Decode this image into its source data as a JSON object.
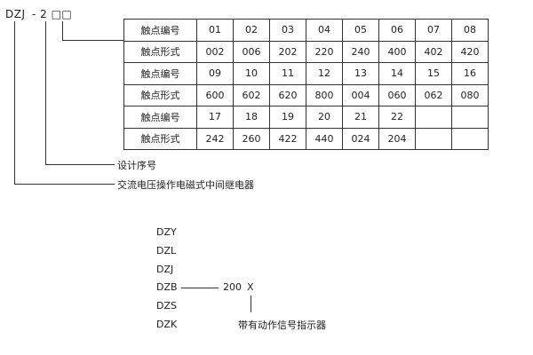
{
  "model": {
    "prefix": "DZJ",
    "suffix": "- 2 □□"
  },
  "table": {
    "rows": [
      {
        "label": "触点编号",
        "cells": [
          "01",
          "02",
          "03",
          "04",
          "05",
          "06",
          "07",
          "08"
        ]
      },
      {
        "label": "触点形式",
        "cells": [
          "002",
          "006",
          "202",
          "220",
          "240",
          "400",
          "402",
          "420"
        ]
      },
      {
        "label": "触点编号",
        "cells": [
          "09",
          "10",
          "11",
          "12",
          "13",
          "14",
          "15",
          "16"
        ]
      },
      {
        "label": "触点形式",
        "cells": [
          "600",
          "602",
          "620",
          "800",
          "004",
          "060",
          "062",
          "080"
        ]
      },
      {
        "label": "触点编号",
        "cells": [
          "17",
          "18",
          "19",
          "20",
          "21",
          "22",
          "",
          ""
        ]
      },
      {
        "label": "触点形式",
        "cells": [
          "242",
          "260",
          "422",
          "440",
          "024",
          "204",
          "",
          ""
        ]
      }
    ]
  },
  "annotations": {
    "design_no": "设计序号",
    "relay_type": "交流电压操作电磁式中间继电器"
  },
  "series": {
    "items": [
      "DZY",
      "DZL",
      "DZJ",
      "DZB",
      "DZS",
      "DZK"
    ],
    "code": "200",
    "code_suffix": "X",
    "suffix_note": "带有动作信号指示器"
  }
}
